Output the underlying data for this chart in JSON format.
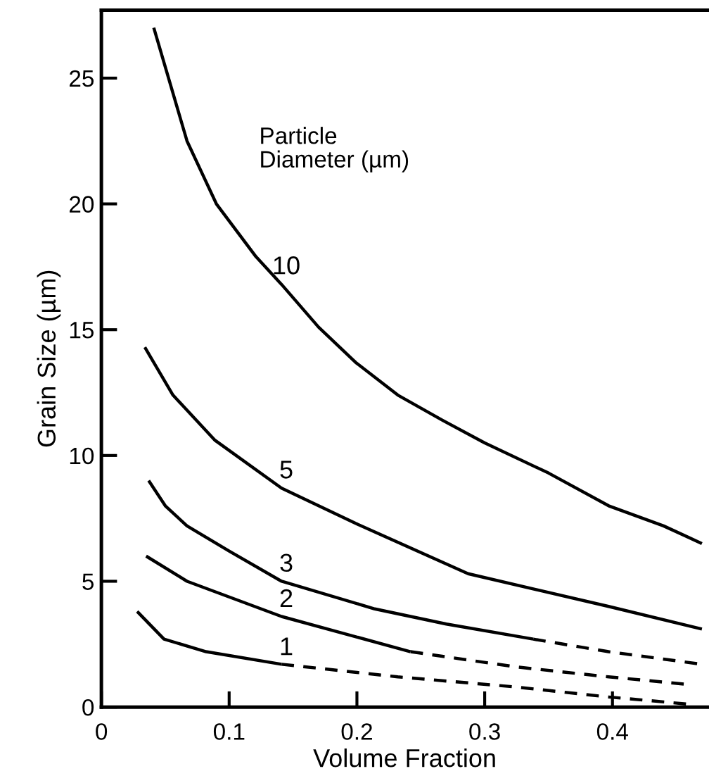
{
  "chart_data": {
    "type": "line",
    "xlabel": "Volume Fraction",
    "ylabel": "Grain Size (µm)",
    "xlim": [
      0,
      0.475
    ],
    "ylim": [
      0,
      27.7
    ],
    "xticks": [
      0,
      0.1,
      0.2,
      0.3,
      0.4
    ],
    "yticks": [
      0,
      5,
      10,
      15,
      20,
      25
    ],
    "grid": false,
    "series": [
      {
        "name": "10",
        "color": "#000000",
        "line_style": "solid",
        "x": [
          0.041,
          0.067,
          0.09,
          0.121,
          0.141,
          0.17,
          0.199,
          0.232,
          0.267,
          0.3,
          0.35,
          0.397,
          0.44,
          0.47
        ],
        "values": [
          27.0,
          22.5,
          20.0,
          17.9,
          16.8,
          15.1,
          13.7,
          12.4,
          11.4,
          10.5,
          9.3,
          8.0,
          7.2,
          6.5
        ]
      },
      {
        "name": "5",
        "color": "#000000",
        "line_style": "solid",
        "x": [
          0.034,
          0.056,
          0.089,
          0.141,
          0.199,
          0.287,
          0.397,
          0.47
        ],
        "values": [
          14.3,
          12.4,
          10.6,
          8.7,
          7.3,
          5.3,
          4.0,
          3.1
        ]
      },
      {
        "name": "3",
        "color": "#000000",
        "line_style": "solid",
        "x": [
          0.037,
          0.05,
          0.067,
          0.1,
          0.141,
          0.214,
          0.27,
          0.338
        ],
        "values": [
          9.0,
          8.0,
          7.2,
          6.2,
          5.0,
          3.9,
          3.3,
          2.7
        ]
      },
      {
        "color": "#000000",
        "line_style": "dashed",
        "x": [
          0.338,
          0.397,
          0.47
        ],
        "values": [
          2.7,
          2.2,
          1.7
        ]
      },
      {
        "name": "2",
        "color": "#000000",
        "line_style": "solid",
        "x": [
          0.035,
          0.067,
          0.141,
          0.242
        ],
        "values": [
          6.0,
          5.0,
          3.6,
          2.2
        ]
      },
      {
        "color": "#000000",
        "line_style": "dashed",
        "x": [
          0.242,
          0.324,
          0.397,
          0.459
        ],
        "values": [
          2.2,
          1.6,
          1.2,
          0.9
        ]
      },
      {
        "name": "1",
        "color": "#000000",
        "line_style": "solid",
        "x": [
          0.028,
          0.049,
          0.082,
          0.141
        ],
        "values": [
          3.8,
          2.7,
          2.2,
          1.7
        ]
      },
      {
        "color": "#000000",
        "line_style": "dashed",
        "x": [
          0.141,
          0.232,
          0.324,
          0.397,
          0.463
        ],
        "values": [
          1.7,
          1.2,
          0.8,
          0.4,
          0.1
        ]
      }
    ],
    "annotations": [
      "Particle\nDiameter (µm)"
    ]
  }
}
